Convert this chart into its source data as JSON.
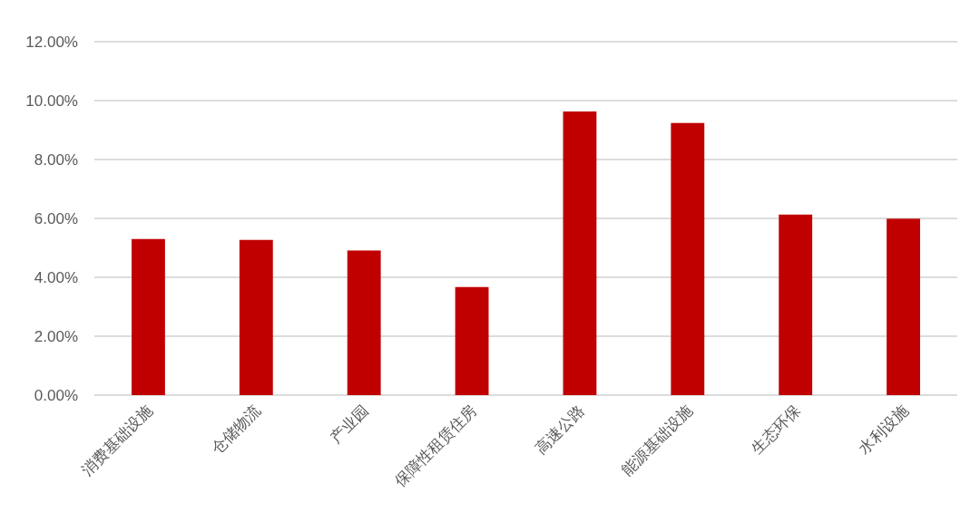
{
  "chart_data": {
    "type": "bar",
    "categories": [
      "消费基础设施",
      "仓储物流",
      "产业园",
      "保障性租赁住房",
      "高速公路",
      "能源基础设施",
      "生态环保",
      "水利设施"
    ],
    "values": [
      5.3,
      5.27,
      4.91,
      3.67,
      9.63,
      9.24,
      6.13,
      5.99
    ],
    "color": "#c00000",
    "ylim": [
      0,
      12
    ],
    "yticks": [
      {
        "value": 0,
        "label": "0.00%"
      },
      {
        "value": 2,
        "label": "2.00%"
      },
      {
        "value": 4,
        "label": "4.00%"
      },
      {
        "value": 6,
        "label": "6.00%"
      },
      {
        "value": 8,
        "label": "8.00%"
      },
      {
        "value": 10,
        "label": "10.00%"
      },
      {
        "value": 12,
        "label": "12.00%"
      }
    ],
    "grid": "y"
  }
}
